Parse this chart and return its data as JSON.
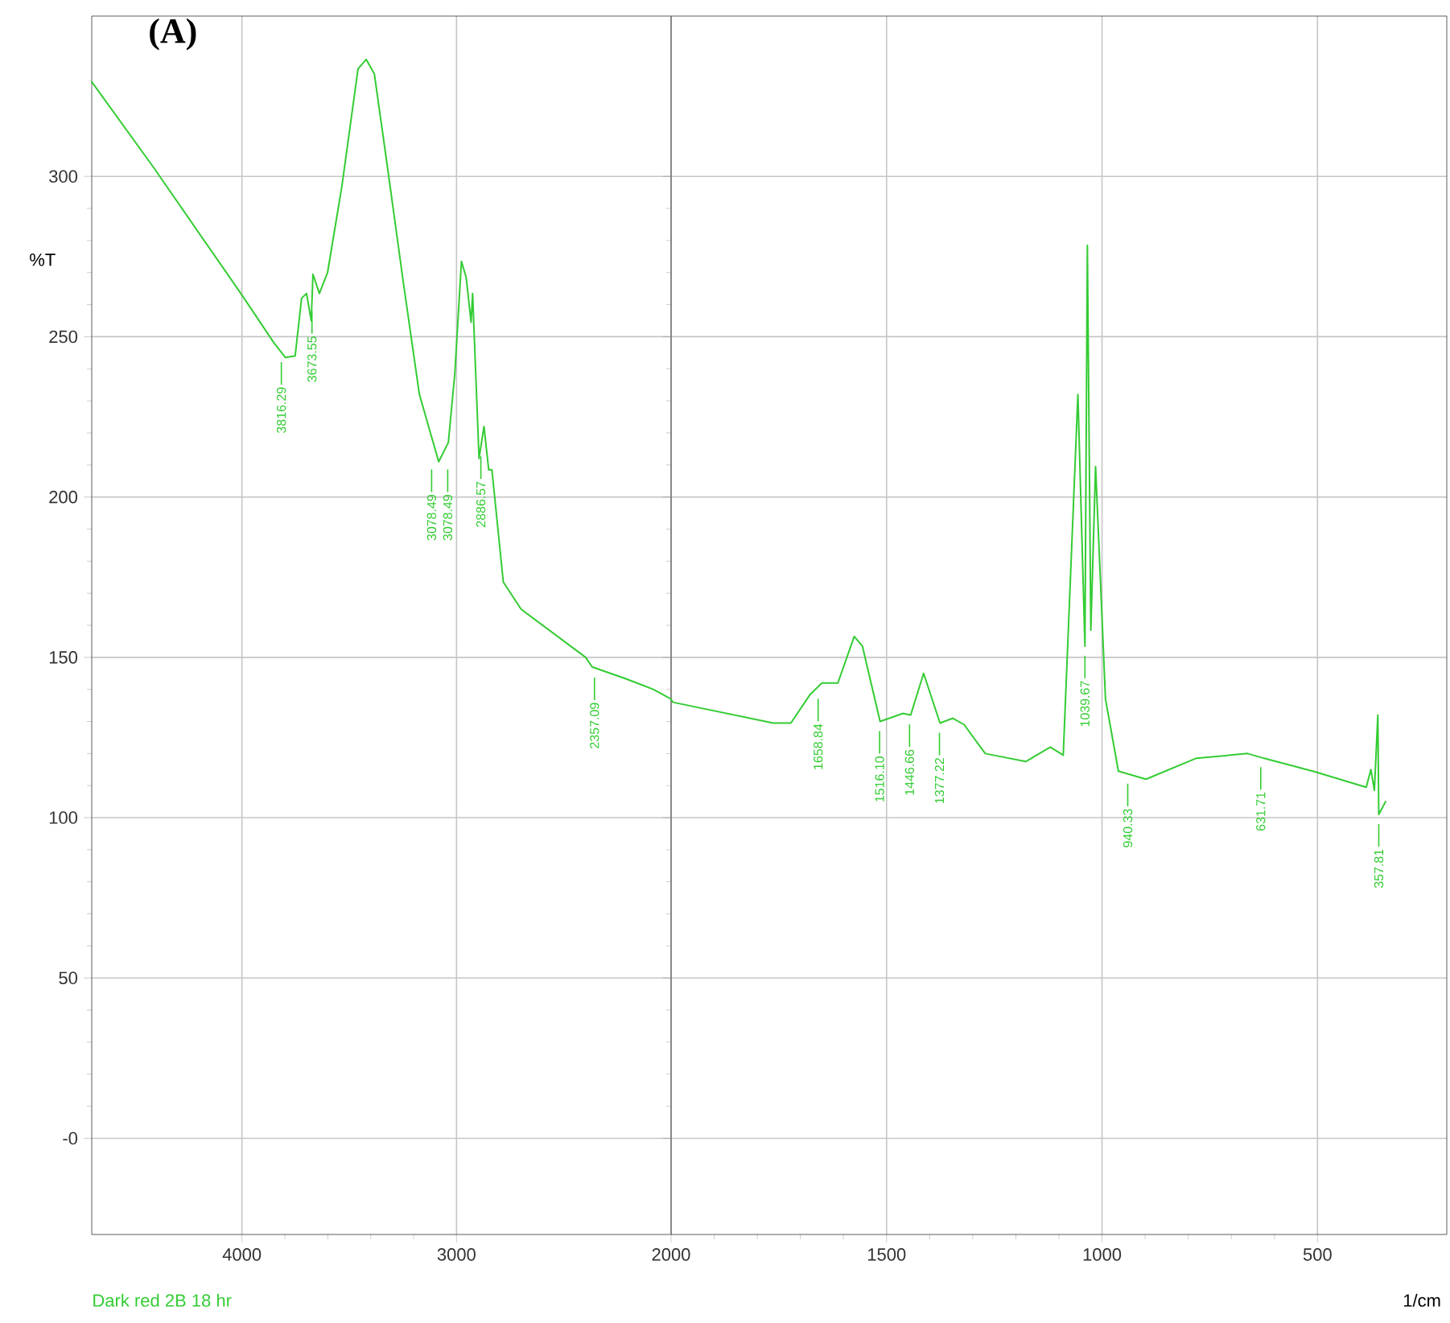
{
  "chart_data": [
    {
      "type": "line",
      "title": "(A)",
      "ylabel": "%T",
      "color": "#33cc33",
      "x": [
        4700,
        4414,
        4000,
        3850,
        3797,
        3752,
        3722,
        3699,
        3677,
        3669,
        3639,
        3601,
        3534,
        3459,
        3421,
        3383,
        3323,
        3248,
        3173,
        3083,
        3038,
        3008,
        2977,
        2955,
        2932,
        2925,
        2895,
        2872,
        2850,
        2835,
        2782,
        2699,
        2398,
        2368,
        2218,
        2120,
        2083,
        2000
      ],
      "values": [
        329.5,
        303,
        263,
        248,
        243.5,
        244,
        262,
        263.5,
        255,
        269.5,
        263.5,
        270,
        297,
        333.5,
        336.5,
        332,
        303.5,
        267,
        232,
        211,
        217,
        238.5,
        273.5,
        268.5,
        254.5,
        263.5,
        212,
        222,
        208.5,
        208.5,
        173.5,
        165,
        150,
        147,
        143.5,
        141,
        140,
        137
      ],
      "xlim": [
        4700,
        2000
      ],
      "ylim": [
        -30,
        350
      ],
      "xticks": [
        4000,
        3000
      ],
      "yticks": [
        {
          "value": 0,
          "label": "-0"
        },
        50,
        100,
        150,
        200,
        250,
        300
      ],
      "grid": true,
      "annotations": [
        {
          "text": "3816.29",
          "x": 3816.29,
          "y": 245.1
        },
        {
          "text": "3673.55",
          "x": 3673.55,
          "y": 261
        },
        {
          "text": "3078.49",
          "x": 3078.49,
          "y": 211.6
        },
        {
          "text": "3078.49",
          "x": 3078.49,
          "y": 211.6
        },
        {
          "text": "2886.57",
          "x": 2886.57,
          "y": 215.7
        },
        {
          "text": "2357.09",
          "x": 2357.09,
          "y": 146.7
        },
        "Dark red 2B 18 hr"
      ]
    },
    {
      "type": "line",
      "xlabel": "1/cm",
      "color": "#33cc33",
      "tick_labels": "x",
      "x": [
        2000,
        1996,
        1763,
        1722,
        1677,
        1650,
        1613,
        1575,
        1556,
        1515,
        1462,
        1444,
        1414,
        1376,
        1346,
        1320,
        1271,
        1177,
        1120,
        1090,
        1056,
        1039.67,
        1034,
        1026,
        1015,
        992,
        962,
        898,
        782,
        662,
        624,
        511,
        387,
        376,
        368,
        360,
        357.81,
        342
      ],
      "values": [
        137,
        136,
        129.5,
        129.5,
        138.5,
        142,
        142,
        156.5,
        153.5,
        130,
        132.5,
        132,
        145,
        129.5,
        131,
        129,
        120,
        117.5,
        122,
        119.5,
        232,
        153.5,
        278.5,
        158.5,
        209.5,
        137,
        114.5,
        112,
        118.5,
        120,
        118.5,
        114.5,
        109.5,
        115,
        108.5,
        132,
        101,
        105
      ],
      "xlim": [
        2000,
        200
      ],
      "ylim": [
        -30,
        350
      ],
      "xticks": [
        2000,
        1500,
        1000,
        500
      ],
      "yticks": [
        0,
        50,
        100,
        150,
        200,
        250,
        300
      ],
      "grid": true,
      "annotations": [
        {
          "text": "1658.84",
          "x": 1658.84,
          "y": 140.1
        },
        {
          "text": "1516.10",
          "x": 1516.1,
          "y": 130
        },
        {
          "text": "1446.66",
          "x": 1446.66,
          "y": 132.1
        },
        {
          "text": "1377.22",
          "x": 1377.22,
          "y": 129.5
        },
        {
          "text": "1039.67",
          "x": 1039.67,
          "y": 153.5
        },
        {
          "text": "940.33",
          "x": 940.33,
          "y": 113.6
        },
        {
          "text": "631.71",
          "x": 631.71,
          "y": 118.8
        },
        {
          "text": "357.81",
          "x": 357.81,
          "y": 101
        }
      ]
    }
  ]
}
